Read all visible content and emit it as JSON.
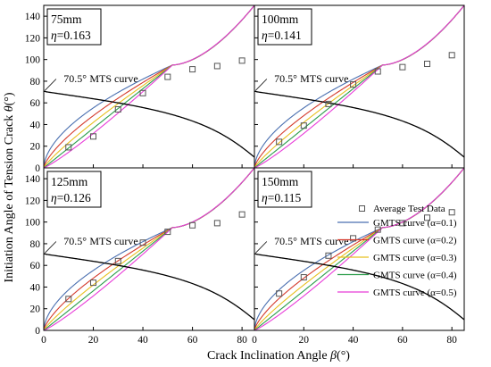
{
  "xlabel": "Crack Inclination Angle ",
  "xlabel_symbol": "β",
  "xlabel_unit": "(°)",
  "ylabel": "Initiation Angle of Tension Crack ",
  "ylabel_symbol": "θ",
  "ylabel_unit": "(°)",
  "mts_angle_label": "70.5°",
  "mts_curve_label": "MTS curve",
  "eta_symbol": "η",
  "colors": {
    "mts": "#000000",
    "alpha_0_1": "#4a6fb0",
    "alpha_0_2": "#d43a2c",
    "alpha_0_3": "#e8c020",
    "alpha_0_4": "#2a9d4a",
    "alpha_0_5": "#e83cd8",
    "test_marker": "#555555"
  },
  "legend": {
    "items": [
      {
        "label": "Average Test Data",
        "marker": "square"
      },
      {
        "label": "GMTS curve (α=0.1)",
        "color": "#4a6fb0"
      },
      {
        "label": "GMTS curve (α=0.2)",
        "color": "#d43a2c"
      },
      {
        "label": "GMTS curve (α=0.3)",
        "color": "#e8c020"
      },
      {
        "label": "GMTS curve (α=0.4)",
        "color": "#2a9d4a"
      },
      {
        "label": "GMTS curve (α=0.5)",
        "color": "#e83cd8"
      }
    ]
  },
  "chart_data": [
    {
      "type": "line",
      "size_label": "75mm",
      "eta_value": "=0.163",
      "x_ticks": [
        0,
        20,
        40,
        60,
        80
      ],
      "y_ticks": [
        0,
        20,
        40,
        60,
        80,
        100,
        120,
        140
      ],
      "xlim": [
        0,
        85
      ],
      "ylim": [
        0,
        150
      ],
      "test_data": {
        "x": [
          10,
          20,
          30,
          40,
          50,
          60,
          70,
          80
        ],
        "y": [
          19,
          29,
          54,
          69,
          84,
          91,
          94,
          99
        ]
      }
    },
    {
      "type": "line",
      "size_label": "100mm",
      "eta_value": "=0.141",
      "x_ticks": [
        0,
        20,
        40,
        60,
        80
      ],
      "y_ticks": [
        0,
        20,
        40,
        60,
        80,
        100,
        120,
        140
      ],
      "xlim": [
        0,
        85
      ],
      "ylim": [
        0,
        150
      ],
      "test_data": {
        "x": [
          10,
          20,
          30,
          40,
          50,
          60,
          70,
          80
        ],
        "y": [
          24,
          39,
          59,
          77,
          89,
          93,
          96,
          104
        ]
      }
    },
    {
      "type": "line",
      "size_label": "125mm",
      "eta_value": "=0.126",
      "x_ticks": [
        0,
        20,
        40,
        60,
        80
      ],
      "y_ticks": [
        0,
        20,
        40,
        60,
        80,
        100,
        120,
        140
      ],
      "xlim": [
        0,
        85
      ],
      "ylim": [
        0,
        150
      ],
      "test_data": {
        "x": [
          10,
          20,
          30,
          40,
          50,
          60,
          70,
          80
        ],
        "y": [
          29,
          44,
          64,
          81,
          91,
          97,
          99,
          107
        ]
      }
    },
    {
      "type": "line",
      "size_label": "150mm",
      "eta_value": "=0.115",
      "x_ticks": [
        0,
        20,
        40,
        60,
        80
      ],
      "y_ticks": [
        0,
        20,
        40,
        60,
        80,
        100,
        120,
        140
      ],
      "xlim": [
        0,
        85
      ],
      "ylim": [
        0,
        150
      ],
      "test_data": {
        "x": [
          10,
          20,
          30,
          40,
          50,
          60,
          70,
          80
        ],
        "y": [
          34,
          49,
          69,
          85,
          93,
          99,
          104,
          109
        ]
      }
    }
  ]
}
